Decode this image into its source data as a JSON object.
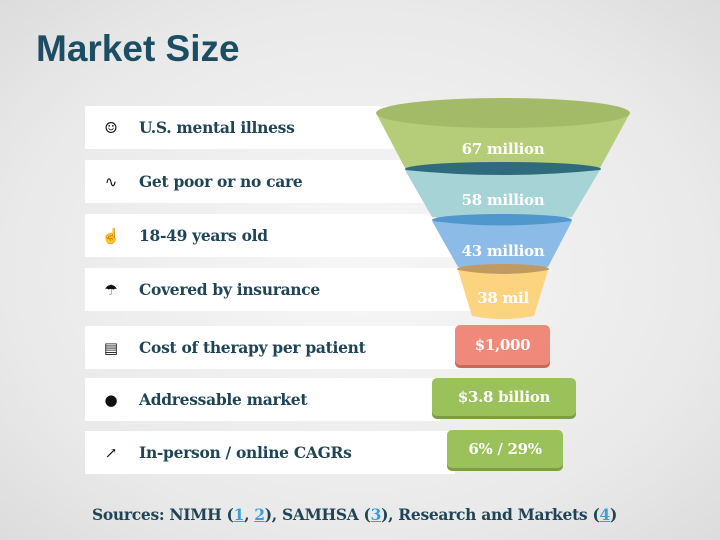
{
  "title": "Market Size",
  "rows": [
    {
      "icon": "person-icon",
      "glyph": "☺",
      "label": "U.S. mental illness",
      "value": "67 million"
    },
    {
      "icon": "heartbeat-icon",
      "glyph": "∿",
      "label": "Get poor or no care",
      "value": "58 million"
    },
    {
      "icon": "touch-hand-icon",
      "glyph": "☝",
      "label": "18-49 years old",
      "value": "43 million"
    },
    {
      "icon": "umbrella-icon",
      "glyph": "☂",
      "label": "Covered by insurance",
      "value": "38 mil"
    },
    {
      "icon": "receipt-icon",
      "glyph": "▤",
      "label": "Cost of therapy per patient",
      "value": "$1,000"
    },
    {
      "icon": "piggy-bank-icon",
      "glyph": "●",
      "label": "Addressable market",
      "value": "$3.8 billion"
    },
    {
      "icon": "growth-chart-icon",
      "glyph": "↗",
      "label": "In-person / online CAGRs",
      "value": "6% / 29%"
    }
  ],
  "sources": {
    "prefix": "Sources: NIMH (",
    "l1": "1",
    "sep1": ", ",
    "l2": "2",
    "mid1": "), SAMHSA (",
    "l3": "3",
    "mid2": "), Research and Markets (",
    "l4": "4",
    "end": ")"
  },
  "colors": {
    "title": "#1b4e63",
    "funnel": [
      "#b5cd78",
      "#a6d3d6",
      "#8dbbe8",
      "#fcd37f"
    ],
    "cost": "#ef8a7a",
    "green": "#9bc15a"
  }
}
